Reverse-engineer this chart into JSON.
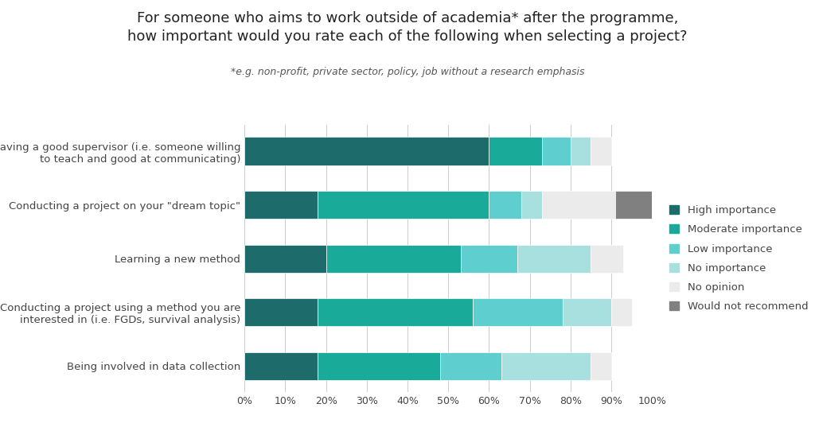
{
  "title_line1": "For someone who aims to work outside of academia* after the programme,",
  "title_line2": "how important would you rate each of the following when selecting a project?",
  "subtitle": "*e.g. non-profit, private sector, policy, job without a research emphasis",
  "categories": [
    "Having a good supervisor (i.e. someone willing\nto teach and good at communicating)",
    "Conducting a project on your \"dream topic\"",
    "Learning a new method",
    "Conducting a project using a method you are\ninterested in (i.e. FGDs, survival analysis)",
    "Being involved in data collection"
  ],
  "legend_labels": [
    "High importance",
    "Moderate importance",
    "Low importance",
    "No importance",
    "No opinion",
    "Would not recommend"
  ],
  "colors": [
    "#1d6b6b",
    "#1aaa9a",
    "#5ecece",
    "#a8e0e0",
    "#ebebeb",
    "#808080"
  ],
  "data": [
    [
      60,
      13,
      7,
      5,
      5,
      0
    ],
    [
      18,
      42,
      8,
      5,
      18,
      9
    ],
    [
      20,
      33,
      14,
      18,
      8,
      0
    ],
    [
      18,
      38,
      22,
      12,
      5,
      0
    ],
    [
      18,
      30,
      15,
      22,
      5,
      0
    ]
  ],
  "xlim": [
    0,
    100
  ],
  "xticks": [
    0,
    10,
    20,
    30,
    40,
    50,
    60,
    70,
    80,
    90,
    100
  ],
  "xtick_labels": [
    "0%",
    "10%",
    "20%",
    "30%",
    "40%",
    "50%",
    "60%",
    "70%",
    "80%",
    "90%",
    "100%"
  ],
  "background_color": "#ffffff",
  "title_fontsize": 13,
  "subtitle_fontsize": 9,
  "ytick_fontsize": 9.5,
  "xtick_fontsize": 9,
  "legend_fontsize": 9.5,
  "bar_height": 0.52
}
